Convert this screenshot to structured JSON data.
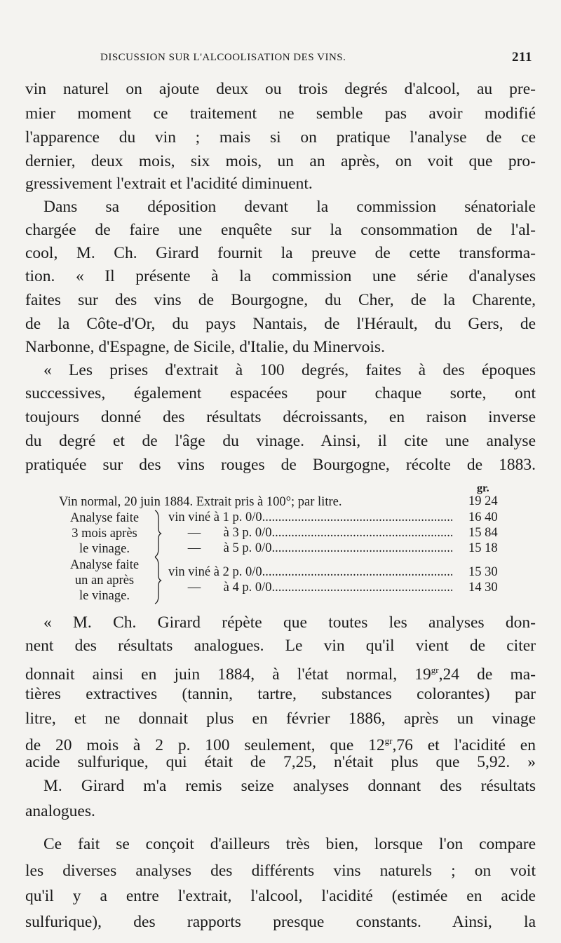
{
  "header": {
    "title": "DISCUSSION SUR L'ALCOOLISATION DES VINS.",
    "page_number": "211"
  },
  "paragraphs_top": [
    {
      "text": "vin naturel on ajoute deux ou trois degrés d'alcool, au pre-"
    },
    {
      "text": "mier moment ce traitement ne semble pas avoir modifié"
    },
    {
      "text": "l'apparence du vin ; mais si on pratique l'analyse de ce"
    },
    {
      "text": "dernier, deux mois, six mois, un an après, on voit que pro-"
    },
    {
      "text": "gressivement l'extrait et l'acidité diminuent.",
      "last": true
    },
    {
      "text": "Dans sa déposition devant la commission sénatoriale",
      "indent": true
    },
    {
      "text": "chargée de faire une enquête sur la consommation de l'al-"
    },
    {
      "text": "cool, M. Ch. Girard fournit la preuve de cette transforma-"
    },
    {
      "text": "tion. « Il présente à la commission une série d'analyses"
    },
    {
      "text": "faites sur des vins de Bourgogne, du Cher, de la Charente,"
    },
    {
      "text": "de la Côte-d'Or, du pays Nantais, de l'Hérault, du Gers, de"
    },
    {
      "text": "Narbonne, d'Espagne, de Sicile, d'Italie, du Minervois.",
      "last": true
    },
    {
      "text": "« Les prises d'extrait à 100 degrés, faites à des époques",
      "indent": true
    },
    {
      "text": "successives, également espacées pour chaque sorte, ont"
    },
    {
      "text": "toujours donné des résultats décroissants, en raison inverse"
    },
    {
      "text": "du degré et de l'âge du vinage. Ainsi, il cite une analyse"
    },
    {
      "text": "pratiquée sur des vins rouges de Bourgogne, récolte de 1883."
    }
  ],
  "table": {
    "unit": "gr.",
    "first_row": {
      "label": "Vin normal, 20 juin 1884. Extrait pris à 100°; par litre.",
      "value": "19 24"
    },
    "groups": [
      {
        "label": [
          "Analyse faite",
          "3 mois après",
          "le vinage."
        ],
        "rows": [
          {
            "desc": "vin viné à 1 p. 0/0",
            "value": "16 40"
          },
          {
            "desc": "— à 3 p. 0/0",
            "value": "15 84"
          },
          {
            "desc": "— à 5 p. 0/0",
            "value": "15 18"
          }
        ]
      },
      {
        "label": [
          "Analyse faite",
          "un an après",
          "le vinage."
        ],
        "rows": [
          {
            "desc": "vin viné à 2 p. 0/0",
            "value": "15 30"
          },
          {
            "desc": "— à 4 p. 0/0",
            "value": "14 30"
          }
        ]
      }
    ]
  },
  "paragraphs_bottom": [
    {
      "text": "« M. Ch. Girard répète que toutes les analyses don-",
      "indent": true
    },
    {
      "text": "nent des résultats analogues. Le vin qu'il vient de citer"
    },
    {
      "pre": "donnait ainsi en juin 1884, à l'état normal, 19",
      "sup": "gr",
      "post": ",24 de ma-"
    },
    {
      "text": "tières extractives (tannin, tartre, substances colorantes) par"
    },
    {
      "text": "litre, et ne donnait plus en février 1886, après un vinage"
    },
    {
      "pre": "de 20 mois à 2 p. 100 seulement, que 12",
      "sup": "gr",
      "post": ",76 et l'acidité en"
    },
    {
      "text": "acide sulfurique, qui était de 7,25, n'était plus que 5,92. »"
    },
    {
      "text": "M. Girard m'a remis seize analyses donnant des résultats",
      "indent": true
    },
    {
      "text": "analogues.",
      "last": true
    },
    {
      "text": "Ce fait se conçoit d'ailleurs très bien, lorsque l'on compare",
      "indent": true
    },
    {
      "text": "les diverses analyses des différents vins naturels ; on voit"
    },
    {
      "text": "qu'il y a entre l'extrait, l'alcool, l'acidité (estimée en acide"
    },
    {
      "text": "sulfurique), des rapports presque constants. Ainsi, la"
    }
  ]
}
